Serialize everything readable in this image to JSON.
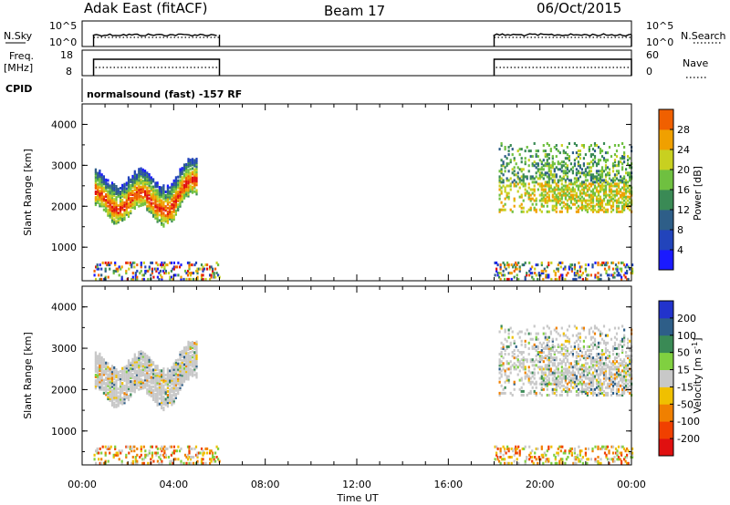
{
  "header": {
    "site": "Adak East (fitACF)",
    "beam": "Beam 17",
    "date": "06/Oct/2015"
  },
  "strips": {
    "nsky_label": "N.Sky",
    "nsky_ticks": [
      "10^5",
      "10^0"
    ],
    "nsearch_label": "N.Search",
    "nsearch_ticks": [
      "10^5",
      "10^0"
    ],
    "freq_label": "Freq.",
    "freq_unit": "[MHz]",
    "freq_ticks": [
      "18",
      "8"
    ],
    "nave_label": "Nave",
    "nave_ticks": [
      "60",
      "0"
    ],
    "cpid_label": "CPID",
    "cpid_text": "normalsound (fast) -157 RF"
  },
  "colors": {
    "power": [
      "#1a1aff",
      "#2244bb",
      "#2e5e88",
      "#3a8a55",
      "#6fc040",
      "#c8d020",
      "#f0a000",
      "#f06000",
      "#e01010"
    ],
    "velocity": [
      "#e01010",
      "#f04000",
      "#f08000",
      "#f0c000",
      "#c8c8c8",
      "#80d040",
      "#3a8a55",
      "#2e5e88",
      "#2233cc"
    ]
  },
  "chart_data": [
    {
      "type": "heatmap",
      "name": "power",
      "x_ticks": [
        "00:00",
        "04:00",
        "08:00",
        "12:00",
        "16:00",
        "20:00",
        "00:00"
      ],
      "y_ticks": [
        "1000",
        "2000",
        "3000",
        "4000"
      ],
      "ylabel": "Slant Range [km]",
      "ylim": [
        180,
        4500
      ],
      "xlim_hours": [
        0,
        24
      ],
      "colorbar_label": "Power [dB]",
      "colorbar_ticks": [
        "4",
        "8",
        "12",
        "16",
        "20",
        "24",
        "28"
      ],
      "colorbar_range": [
        0,
        32
      ],
      "data_windows_hours": [
        [
          0.5,
          6.0
        ],
        [
          18.0,
          24.0
        ]
      ]
    },
    {
      "type": "heatmap",
      "name": "velocity",
      "x_ticks": [
        "00:00",
        "04:00",
        "08:00",
        "12:00",
        "16:00",
        "20:00",
        "00:00"
      ],
      "y_ticks": [
        "1000",
        "2000",
        "3000",
        "4000"
      ],
      "ylabel": "Slant Range [km]",
      "ylim": [
        180,
        4500
      ],
      "xlim_hours": [
        0,
        24
      ],
      "xlabel": "Time UT",
      "colorbar_label": "Velocity [m s",
      "colorbar_label_sup": "-1",
      "colorbar_label_end": "]",
      "colorbar_ticks": [
        "-200",
        "-100",
        "-50",
        "-15",
        "15",
        "50",
        "100",
        "200"
      ],
      "data_windows_hours": [
        [
          0.5,
          6.0
        ],
        [
          18.0,
          24.0
        ]
      ]
    }
  ]
}
